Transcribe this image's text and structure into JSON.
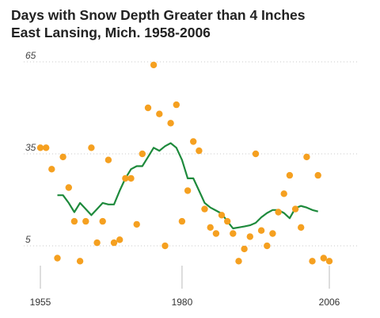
{
  "chart_data": {
    "type": "scatter",
    "title": "Days with Snow Depth Greater than 4 Inches",
    "subtitle": "East Lansing, Mich. 1958-2006",
    "xlabel": "",
    "ylabel": "",
    "xlim": [
      1955,
      2006
    ],
    "ylim": [
      5,
      65
    ],
    "x_ticks": [
      1955,
      1980,
      2006
    ],
    "y_ticks": [
      65,
      35,
      5
    ],
    "grid": true,
    "colors": {
      "points": "#f5a020",
      "line": "#1e8a3c",
      "grid": "#c8c8c8",
      "axis": "#bbbbbb"
    },
    "series": [
      {
        "kind": "points",
        "x": [
          1955,
          1956,
          1957,
          1958,
          1959,
          1960,
          1961,
          1962,
          1963,
          1964,
          1965,
          1966,
          1967,
          1968,
          1969,
          1970,
          1971,
          1972,
          1973,
          1974,
          1975,
          1976,
          1977,
          1978,
          1979,
          1980,
          1981,
          1982,
          1983,
          1984,
          1985,
          1986,
          1987,
          1988,
          1989,
          1990,
          1991,
          1992,
          1993,
          1994,
          1995,
          1996,
          1997,
          1998,
          1999,
          2000,
          2001,
          2002,
          2003,
          2004,
          2005,
          2006
        ],
        "y": [
          37,
          37,
          30,
          1,
          34,
          24,
          13,
          0,
          13,
          37,
          6,
          13,
          33,
          6,
          7,
          27,
          27,
          12,
          35,
          50,
          64,
          48,
          5,
          45,
          51,
          13,
          23,
          39,
          36,
          17,
          11,
          9,
          15,
          13,
          9,
          0,
          4,
          8,
          35,
          10,
          5,
          9,
          16,
          22,
          28,
          17,
          11,
          34,
          0,
          28,
          1,
          0
        ]
      },
      {
        "kind": "line",
        "x": [
          1958,
          1959,
          1960,
          1961,
          1962,
          1963,
          1964,
          1965,
          1966,
          1967,
          1968,
          1969,
          1970,
          1971,
          1972,
          1973,
          1974,
          1975,
          1976,
          1977,
          1978,
          1979,
          1980,
          1981,
          1982,
          1983,
          1984,
          1985,
          1986,
          1987,
          1988,
          1989,
          1990,
          1991,
          1992,
          1993,
          1994,
          1995,
          1996,
          1997,
          1998,
          1999,
          2000,
          2001,
          2002,
          2003,
          2004
        ],
        "y": [
          21.5,
          21.5,
          19,
          16,
          19,
          17,
          15,
          17,
          19,
          18.5,
          18.5,
          23,
          27,
          30,
          31,
          31,
          34,
          37,
          36,
          37.5,
          38.5,
          37,
          33,
          27,
          27,
          23,
          19,
          17.5,
          16.5,
          15.5,
          13,
          10.7,
          11,
          11.3,
          11.7,
          12.5,
          14.3,
          15.7,
          16.7,
          16.7,
          15.7,
          14,
          17.3,
          18,
          17.5,
          16.7,
          16.2
        ]
      }
    ]
  }
}
